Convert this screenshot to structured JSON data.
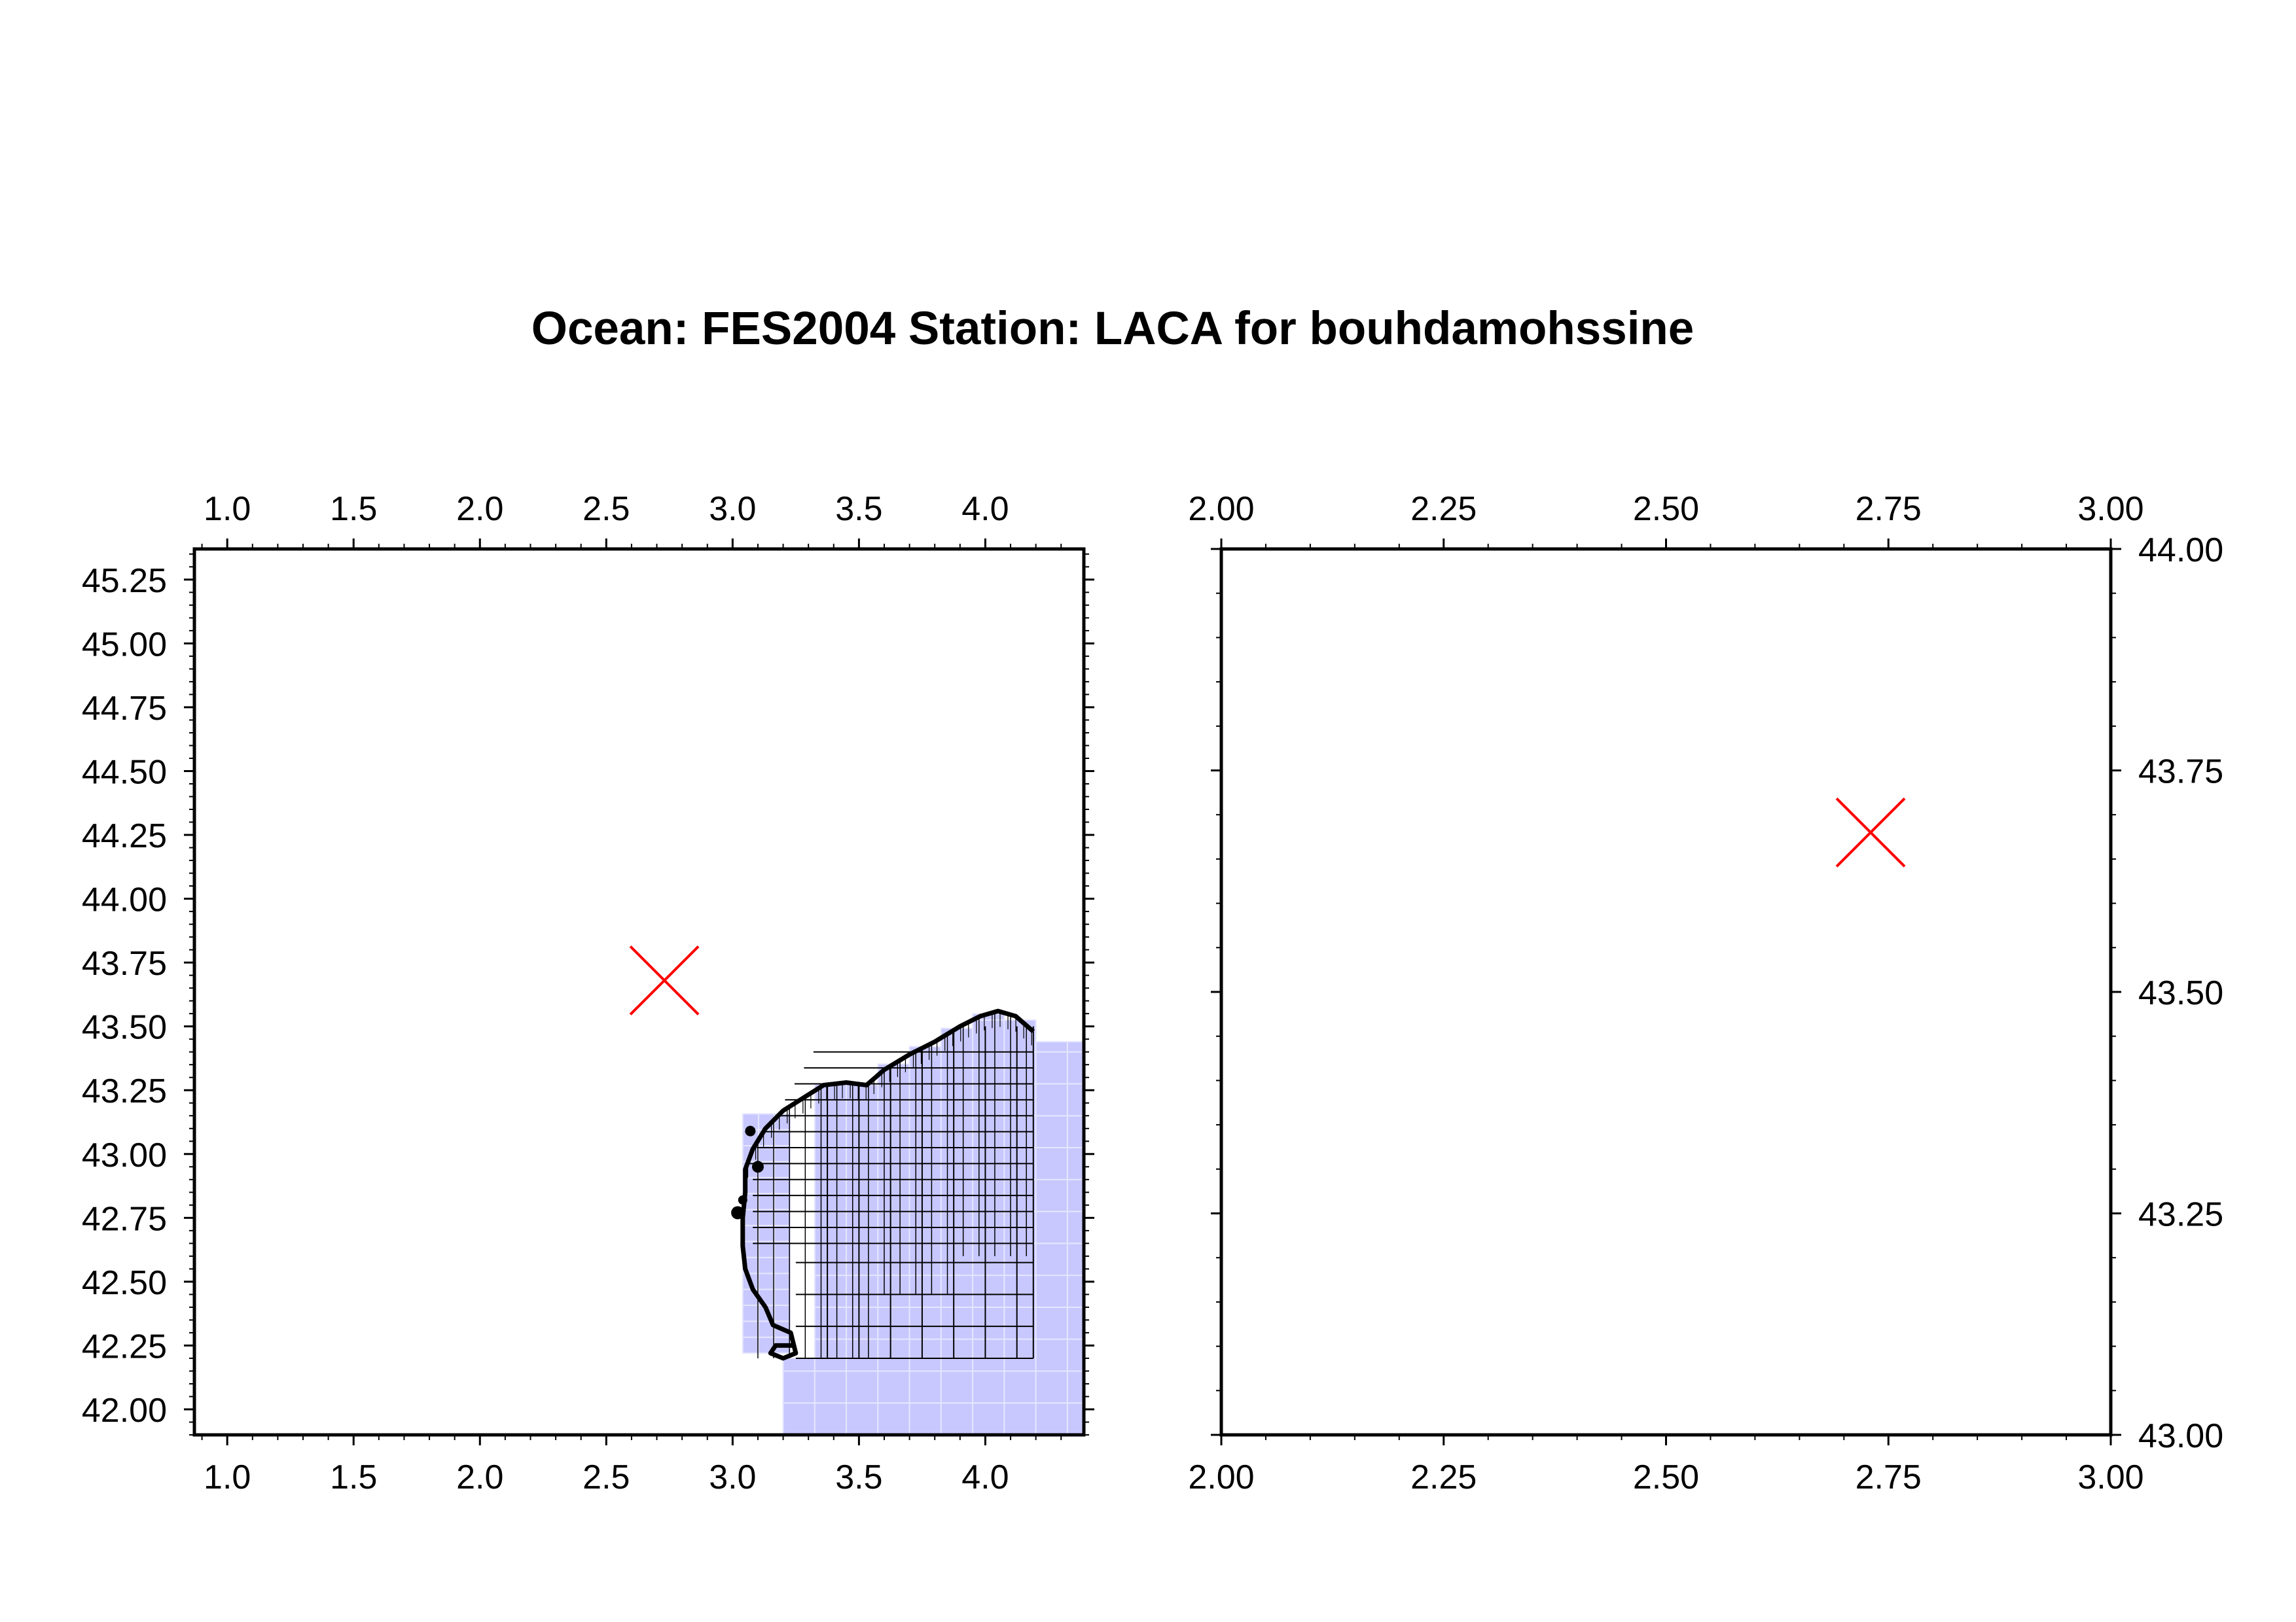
{
  "title": "Ocean: FES2004  Station: LACA  for bouhdamohssine",
  "colors": {
    "station_marker": "#ff0000",
    "model_cells": "#c8c8ff",
    "grid_lines": "#000000",
    "frame": "#000000"
  },
  "station_marker": {
    "icon": "red-x-marker",
    "lon": 2.73,
    "lat": 43.68
  },
  "chart_data": [
    {
      "type": "map",
      "name": "overview-map",
      "xlim": [
        0.87,
        4.39
      ],
      "ylim": [
        41.9,
        45.37
      ],
      "x_ticks": [
        "1.0",
        "1.5",
        "2.0",
        "2.5",
        "3.0",
        "3.5",
        "4.0"
      ],
      "y_ticks": [
        "42.00",
        "42.25",
        "42.50",
        "42.75",
        "43.00",
        "43.25",
        "43.50",
        "43.75",
        "44.00",
        "44.25",
        "44.50",
        "44.75",
        "45.00",
        "45.25"
      ],
      "x_tick_positions": "top-and-bottom",
      "y_tick_positions": "left",
      "station": {
        "lon": 2.73,
        "lat": 43.68
      },
      "ocean_model_grid": "FES2004 mesh covering the Gulf of Lion south-east of the station"
    },
    {
      "type": "map",
      "name": "zoom-map",
      "xlim": [
        2.0,
        3.0
      ],
      "ylim": [
        43.0,
        44.0
      ],
      "x_ticks": [
        "2.00",
        "2.25",
        "2.50",
        "2.75",
        "3.00"
      ],
      "y_ticks": [
        "43.00",
        "43.25",
        "43.50",
        "43.75",
        "44.00"
      ],
      "x_tick_positions": "top-and-bottom",
      "y_tick_positions": "right",
      "station": {
        "lon": 2.73,
        "lat": 43.68
      }
    }
  ]
}
